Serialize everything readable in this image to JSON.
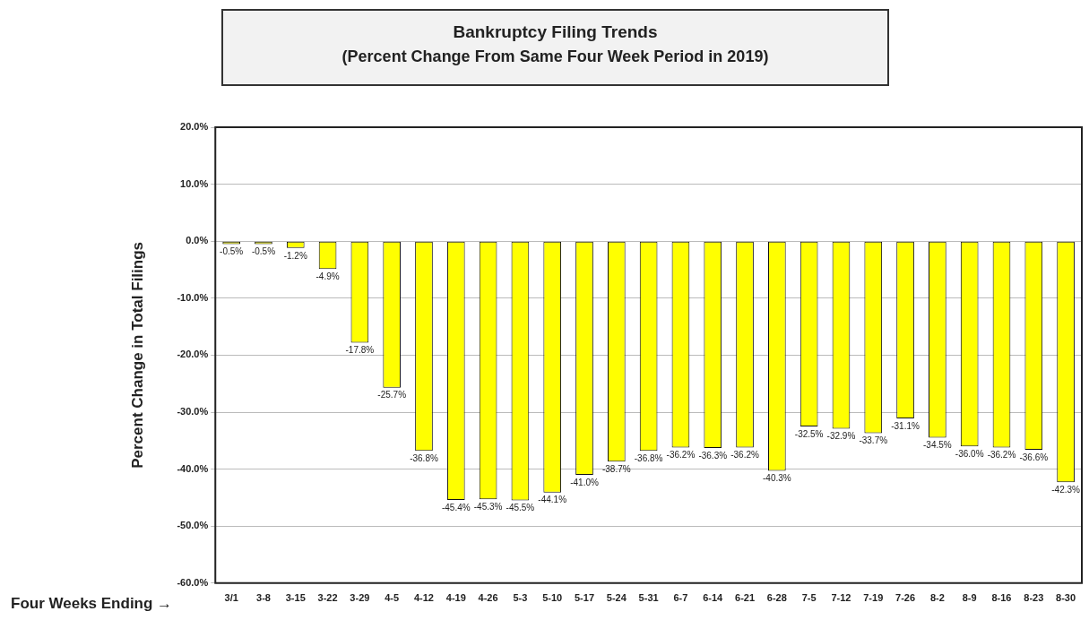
{
  "chart_data": {
    "type": "bar",
    "title": "Bankruptcy Filing Trends",
    "subtitle": "(Percent Change From Same Four Week Period in 2019)",
    "xlabel": "Four Weeks Ending →",
    "ylabel": "Percent Change in Total Filings",
    "categories": [
      "3/1",
      "3-8",
      "3-15",
      "3-22",
      "3-29",
      "4-5",
      "4-12",
      "4-19",
      "4-26",
      "5-3",
      "5-10",
      "5-17",
      "5-24",
      "5-31",
      "6-7",
      "6-14",
      "6-21",
      "6-28",
      "7-5",
      "7-12",
      "7-19",
      "7-26",
      "8-2",
      "8-9",
      "8-16",
      "8-23",
      "8-30"
    ],
    "values": [
      -0.5,
      -0.5,
      -1.2,
      -4.9,
      -17.8,
      -25.7,
      -36.8,
      -45.4,
      -45.3,
      -45.5,
      -44.1,
      -41.0,
      -38.7,
      -36.8,
      -36.2,
      -36.3,
      -36.2,
      -40.3,
      -32.5,
      -32.9,
      -33.7,
      -31.1,
      -34.5,
      -36.0,
      -36.2,
      -36.6,
      -42.3
    ],
    "value_labels": [
      "-0.5%",
      "-0.5%",
      "-1.2%",
      "-4.9%",
      "-17.8%",
      "-25.7%",
      "-36.8%",
      "-45.4%",
      "-45.3%",
      "-45.5%",
      "-44.1%",
      "-41.0%",
      "-38.7%",
      "-36.8%",
      "-36.2%",
      "-36.3%",
      "-36.2%",
      "-40.3%",
      "-32.5%",
      "-32.9%",
      "-33.7%",
      "-31.1%",
      "-34.5%",
      "-36.0%",
      "-36.2%",
      "-36.6%",
      "-42.3%"
    ],
    "color": "#ffff00",
    "ylim": [
      -60,
      20
    ],
    "yticks": [
      {
        "value": -60,
        "label": "-60.0%"
      },
      {
        "value": -50,
        "label": "-50.0%"
      },
      {
        "value": -40,
        "label": "-40.0%"
      },
      {
        "value": -30,
        "label": "-30.0%"
      },
      {
        "value": -20,
        "label": "-20.0%"
      },
      {
        "value": -10,
        "label": "-10.0%"
      },
      {
        "value": 0,
        "label": "0.0%"
      },
      {
        "value": 10,
        "label": "10.0%"
      },
      {
        "value": 20,
        "label": "20.0%"
      }
    ],
    "grid": "y",
    "legend": false
  }
}
